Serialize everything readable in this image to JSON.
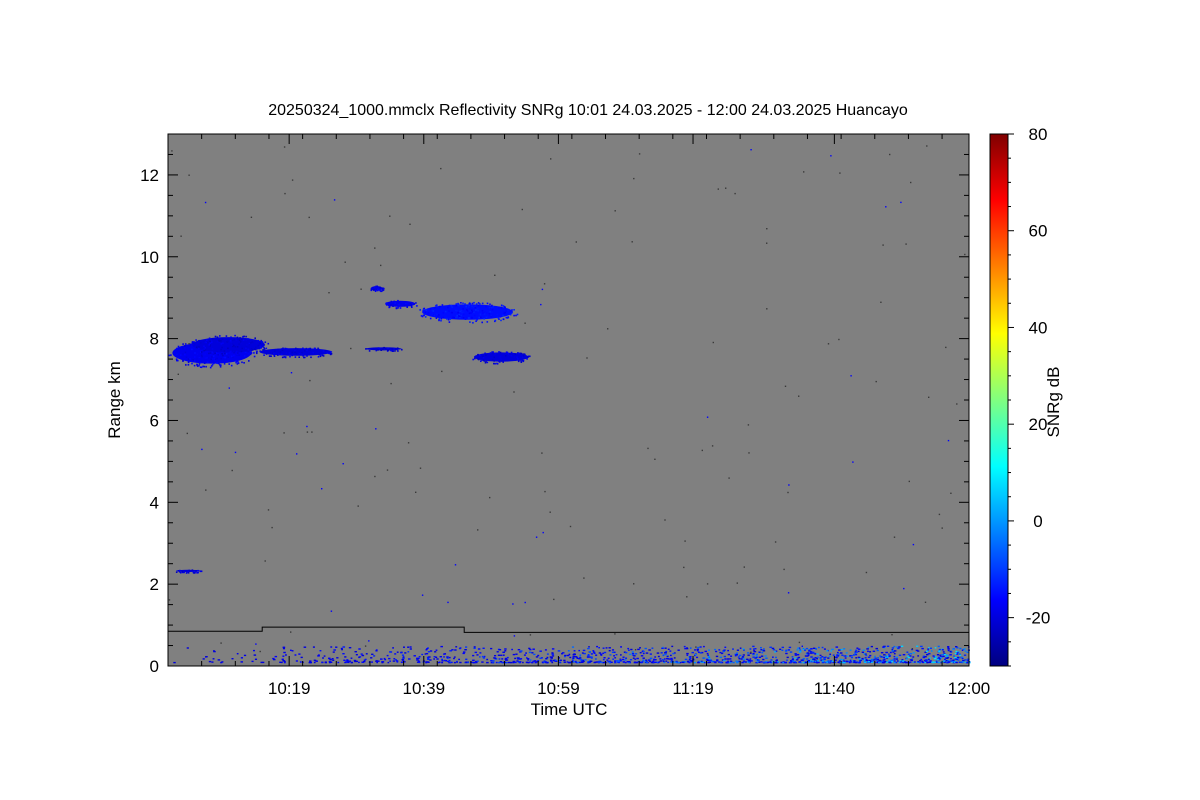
{
  "chart_data": {
    "type": "heatmap",
    "title": "20250324_1000.mmclx Reflectivity SNRg   10:01 24.03.2025 - 12:00 24.03.2025 Huancayo",
    "xlabel": "Time UTC",
    "ylabel": "Range km",
    "colorbar_label": "SNRg dB",
    "background_color": "#808080",
    "xlim": [
      "10:01",
      "12:00"
    ],
    "ylim": [
      0,
      13
    ],
    "x_ticks": [
      "10:19",
      "10:39",
      "10:59",
      "11:19",
      "11:40",
      "12:00"
    ],
    "y_ticks": [
      0,
      2,
      4,
      6,
      8,
      10,
      12
    ],
    "colorbar_range": [
      -30,
      80
    ],
    "colorbar_ticks": [
      -20,
      0,
      20,
      40,
      60,
      80
    ],
    "colormap": [
      "#000080",
      "#0000ff",
      "#0080ff",
      "#00ffff",
      "#80ff80",
      "#ffff00",
      "#ff8000",
      "#ff0000",
      "#800000"
    ],
    "echo_layers": [
      {
        "x_start": "10:01",
        "x_end": "10:14",
        "range_bottom": 7.3,
        "range_top": 8.0,
        "snr_db": -18
      },
      {
        "x_start": "10:04",
        "x_end": "10:16",
        "range_bottom": 7.6,
        "range_top": 8.1,
        "snr_db": -20
      },
      {
        "x_start": "10:14",
        "x_end": "10:26",
        "range_bottom": 7.55,
        "range_top": 7.8,
        "snr_db": -20
      },
      {
        "x_start": "10:30",
        "x_end": "10:36",
        "range_bottom": 7.7,
        "range_top": 7.8,
        "snr_db": -21
      },
      {
        "x_start": "10:31",
        "x_end": "10:33",
        "range_bottom": 9.15,
        "range_top": 9.3,
        "snr_db": -19
      },
      {
        "x_start": "10:33",
        "x_end": "10:38",
        "range_bottom": 8.75,
        "range_top": 8.95,
        "snr_db": -18
      },
      {
        "x_start": "10:38",
        "x_end": "10:53",
        "range_bottom": 8.4,
        "range_top": 8.9,
        "snr_db": -15
      },
      {
        "x_start": "10:46",
        "x_end": "10:55",
        "range_bottom": 7.4,
        "range_top": 7.7,
        "snr_db": -20
      },
      {
        "x_start": "10:02",
        "x_end": "10:06",
        "range_bottom": 2.3,
        "range_top": 2.35,
        "snr_db": -20
      }
    ],
    "surface_clutter": {
      "x_start": "10:01",
      "x_end": "12:00",
      "range_bottom": 0.1,
      "range_top": 0.5,
      "snr_db": [
        -20,
        10
      ]
    },
    "threshold_line": [
      {
        "time": "10:01",
        "range": 0.85
      },
      {
        "time": "10:15",
        "range": 0.85
      },
      {
        "time": "10:15",
        "range": 0.95
      },
      {
        "time": "10:45",
        "range": 0.95
      },
      {
        "time": "10:45",
        "range": 0.82
      },
      {
        "time": "12:00",
        "range": 0.82
      }
    ]
  }
}
